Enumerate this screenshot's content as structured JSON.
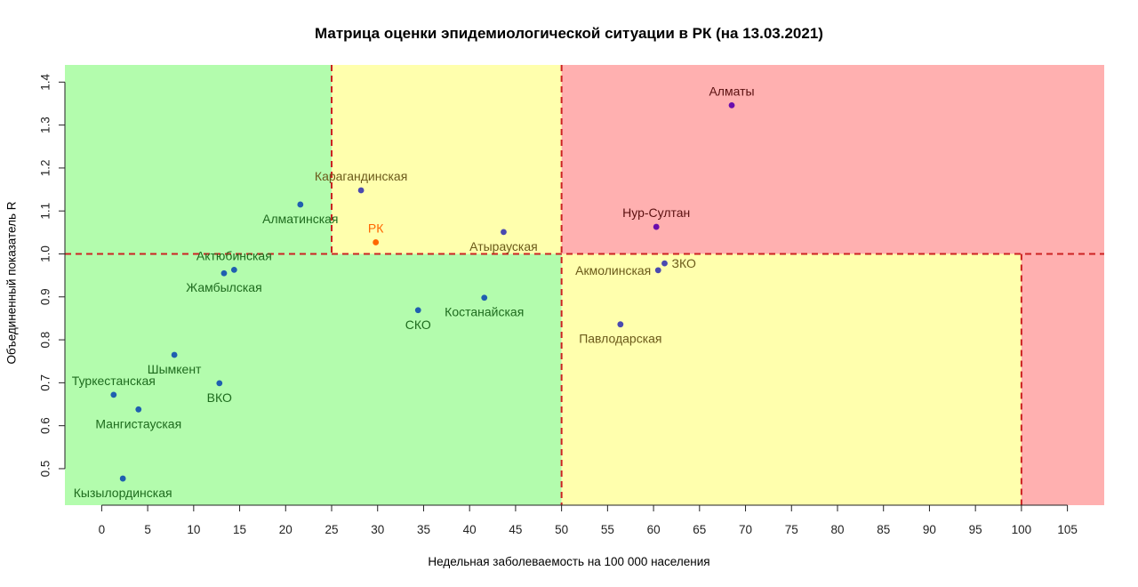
{
  "chart_data": {
    "type": "scatter",
    "title": "Матрица оценки эпидемиологической ситуации в РК (на 13.03.2021)",
    "xlabel": "Недельная заболеваемость на 100 000 населения",
    "ylabel": "Объединенный показатель R",
    "xlim": [
      -4,
      109
    ],
    "ylim": [
      0.415,
      1.44
    ],
    "x_ticks": [
      0,
      5,
      10,
      15,
      20,
      25,
      30,
      35,
      40,
      45,
      50,
      55,
      60,
      65,
      70,
      75,
      80,
      85,
      90,
      95,
      100,
      105
    ],
    "y_ticks": [
      0.5,
      0.6,
      0.7,
      0.8,
      0.9,
      1.0,
      1.1,
      1.2,
      1.3,
      1.4
    ],
    "y_tick_labels": [
      "0.5",
      "0.6",
      "0.7",
      "0.8",
      "0.9",
      "1.0",
      "1.1",
      "1.2",
      "1.3",
      "1.4"
    ],
    "grid": false,
    "zones": [
      {
        "x": [
          -4,
          50
        ],
        "y": [
          0.415,
          1.0
        ],
        "color": "#b3fcad"
      },
      {
        "x": [
          -4,
          25
        ],
        "y": [
          1.0,
          1.44
        ],
        "color": "#b3fcad"
      },
      {
        "x": [
          25,
          50
        ],
        "y": [
          1.0,
          1.44
        ],
        "color": "#ffffad"
      },
      {
        "x": [
          50,
          100
        ],
        "y": [
          0.415,
          1.0
        ],
        "color": "#ffffad"
      },
      {
        "x": [
          50,
          109
        ],
        "y": [
          1.0,
          1.44
        ],
        "color": "#ffb0b0"
      },
      {
        "x": [
          100,
          109
        ],
        "y": [
          0.415,
          1.0
        ],
        "color": "#ffb0b0"
      }
    ],
    "threshold_lines": {
      "color": "#cc2222",
      "vertical": [
        {
          "x": 25,
          "y": [
            1.0,
            1.44
          ]
        },
        {
          "x": 50,
          "y": [
            0.415,
            1.44
          ]
        },
        {
          "x": 100,
          "y": [
            0.415,
            1.0
          ]
        }
      ],
      "horizontal": [
        {
          "y": 1.0,
          "x": [
            -4,
            109
          ]
        }
      ]
    },
    "points": [
      {
        "label": "Алматы",
        "x": 68.5,
        "y": 1.346,
        "point_color": "#6a0dad",
        "label_color": "#5a1010",
        "label_pos": "above"
      },
      {
        "label": "Нур-Султан",
        "x": 60.3,
        "y": 1.063,
        "point_color": "#6a0dad",
        "label_color": "#5a1010",
        "label_pos": "above"
      },
      {
        "label": "ЗКО",
        "x": 61.2,
        "y": 0.978,
        "point_color": "#4a4ab0",
        "label_color": "#6b5a1a",
        "label_pos": "right"
      },
      {
        "label": "Акмолинская",
        "x": 60.5,
        "y": 0.962,
        "point_color": "#4a4ab0",
        "label_color": "#6b5a1a",
        "label_pos": "left"
      },
      {
        "label": "Павлодарская",
        "x": 56.4,
        "y": 0.836,
        "point_color": "#4a4ab0",
        "label_color": "#6b5a1a",
        "label_pos": "below"
      },
      {
        "label": "Атырауская",
        "x": 43.7,
        "y": 1.051,
        "point_color": "#4a4ab0",
        "label_color": "#6b5a1a",
        "label_pos": "below"
      },
      {
        "label": "Карагандинская",
        "x": 28.2,
        "y": 1.148,
        "point_color": "#4a4ab0",
        "label_color": "#6b5a1a",
        "label_pos": "above"
      },
      {
        "label": "РК",
        "x": 29.8,
        "y": 1.027,
        "point_color": "#ff6600",
        "label_color": "#ff6600",
        "label_pos": "above"
      },
      {
        "label": "Алматинская",
        "x": 21.6,
        "y": 1.115,
        "point_color": "#1f5fb0",
        "label_color": "#1e6b1e",
        "label_pos": "below"
      },
      {
        "label": "Актюбинская",
        "x": 14.4,
        "y": 0.963,
        "point_color": "#1f5fb0",
        "label_color": "#1e6b1e",
        "label_pos": "above"
      },
      {
        "label": "Жамбылская",
        "x": 13.3,
        "y": 0.955,
        "point_color": "#1f5fb0",
        "label_color": "#1e6b1e",
        "label_pos": "below"
      },
      {
        "label": "СКО",
        "x": 34.4,
        "y": 0.869,
        "point_color": "#1f5fb0",
        "label_color": "#1e6b1e",
        "label_pos": "below"
      },
      {
        "label": "Костанайская",
        "x": 41.6,
        "y": 0.898,
        "point_color": "#1f5fb0",
        "label_color": "#1e6b1e",
        "label_pos": "below"
      },
      {
        "label": "Шымкент",
        "x": 7.9,
        "y": 0.765,
        "point_color": "#1f5fb0",
        "label_color": "#1e6b1e",
        "label_pos": "below"
      },
      {
        "label": "ВКО",
        "x": 12.8,
        "y": 0.699,
        "point_color": "#1f5fb0",
        "label_color": "#1e6b1e",
        "label_pos": "below"
      },
      {
        "label": "Туркестанская",
        "x": 1.3,
        "y": 0.672,
        "point_color": "#1f5fb0",
        "label_color": "#1e6b1e",
        "label_pos": "above"
      },
      {
        "label": "Мангистауская",
        "x": 4.0,
        "y": 0.638,
        "point_color": "#1f5fb0",
        "label_color": "#1e6b1e",
        "label_pos": "below"
      },
      {
        "label": "Кызылординская",
        "x": 2.3,
        "y": 0.477,
        "point_color": "#1f5fb0",
        "label_color": "#1e6b1e",
        "label_pos": "below"
      }
    ]
  }
}
